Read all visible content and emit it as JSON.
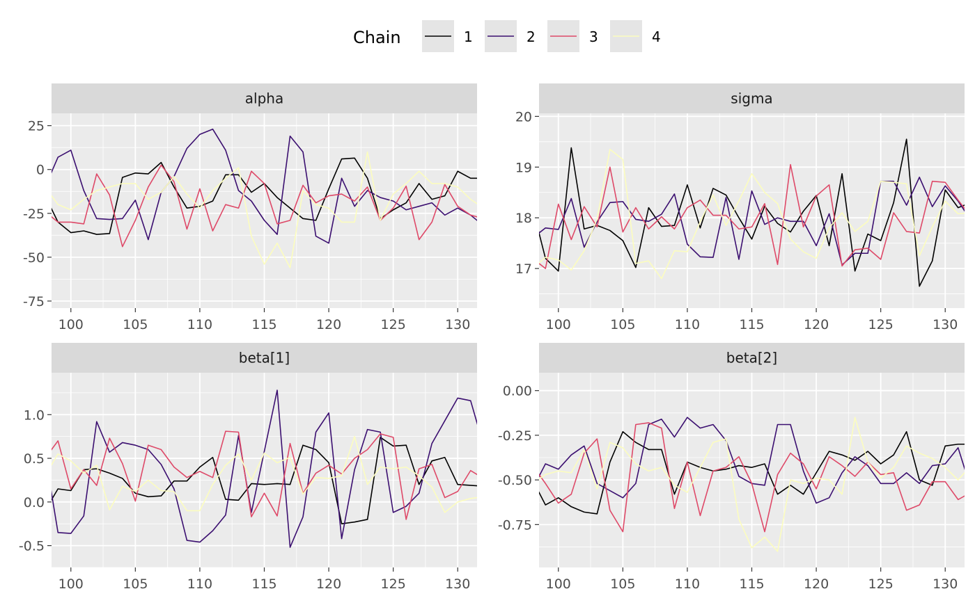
{
  "legend": {
    "title": "Chain",
    "items": [
      {
        "label": "1",
        "color": "#000000"
      },
      {
        "label": "2",
        "color": "#3B0F70"
      },
      {
        "label": "3",
        "color": "#DE4968"
      },
      {
        "label": "4",
        "color": "#FCFDBF"
      }
    ]
  },
  "chart_data": [
    {
      "type": "line",
      "title": "alpha",
      "x": [
        98,
        99,
        100,
        101,
        102,
        103,
        104,
        105,
        106,
        107,
        108,
        109,
        110,
        111,
        112,
        113,
        114,
        115,
        116,
        117,
        118,
        119,
        120,
        121,
        122,
        123,
        124,
        125,
        126,
        127,
        128,
        129,
        130,
        131,
        132
      ],
      "xlim": [
        98.5,
        131.5
      ],
      "xticks": [
        100,
        105,
        110,
        115,
        120,
        125,
        130
      ],
      "ylim": [
        -79,
        32
      ],
      "yticks": [
        25,
        0,
        -25,
        -50,
        -75
      ],
      "ytick_labels": [
        "25",
        "0",
        "-25",
        "-50",
        "-75"
      ],
      "series": [
        {
          "chain": "1",
          "values": [
            -15,
            -30,
            -36,
            -35,
            -37,
            -36.5,
            -4.5,
            -2,
            -2.5,
            4,
            -10,
            -22,
            -21,
            -18,
            -3,
            -3,
            -13,
            -8,
            -16,
            -22,
            -28,
            -29,
            -11,
            6,
            6.5,
            -5,
            -28,
            -23,
            -19,
            -8,
            -17,
            -15,
            -1,
            -5,
            -5
          ]
        },
        {
          "chain": "2",
          "values": [
            -10,
            7,
            11,
            -12,
            -28,
            -28.5,
            -28,
            -17.5,
            -40,
            -13,
            -4,
            12,
            20,
            23,
            11,
            -12,
            -18,
            -29,
            -37,
            19,
            10,
            -38,
            -42,
            -5,
            -21,
            -12,
            -16,
            -18,
            -23,
            -21,
            -19,
            -26,
            -22,
            -26,
            -32
          ]
        },
        {
          "chain": "3",
          "values": [
            -24,
            -30,
            -30,
            -31,
            -2.5,
            -14.5,
            -44,
            -29,
            -10,
            2.5,
            -7,
            -34,
            -11,
            -35,
            -20,
            -22,
            -1,
            -8,
            -31,
            -29,
            -9,
            -19,
            -15,
            -14,
            -18,
            -10,
            -29,
            -22,
            -9.5,
            -40,
            -30,
            -8.5,
            -21,
            -26,
            -28
          ]
        },
        {
          "chain": "4",
          "values": [
            -10,
            -20,
            -23,
            -17,
            -12,
            -10,
            -8,
            -8,
            -17,
            -13,
            -4,
            -14,
            -22,
            -12,
            -5,
            1,
            -38,
            -54,
            -42,
            -56,
            -12,
            -20,
            -22,
            -30,
            -30,
            10,
            -29,
            -14,
            -8,
            -1,
            -8,
            -8,
            -10,
            -17,
            -22
          ]
        }
      ]
    },
    {
      "type": "line",
      "title": "sigma",
      "x": [
        98,
        99,
        100,
        101,
        102,
        103,
        104,
        105,
        106,
        107,
        108,
        109,
        110,
        111,
        112,
        113,
        114,
        115,
        116,
        117,
        118,
        119,
        120,
        121,
        122,
        123,
        124,
        125,
        126,
        127,
        128,
        129,
        130,
        131,
        132
      ],
      "xlim": [
        98.5,
        131.5
      ],
      "xticks": [
        100,
        105,
        110,
        115,
        120,
        125,
        130
      ],
      "ylim": [
        16.22,
        20.06
      ],
      "yticks": [
        20,
        19,
        18,
        17
      ],
      "ytick_labels": [
        "20",
        "19",
        "18",
        "17"
      ],
      "series": [
        {
          "chain": "1",
          "values": [
            18.2,
            17.2,
            16.95,
            19.38,
            17.78,
            17.85,
            17.75,
            17.55,
            17.02,
            18.2,
            17.83,
            17.85,
            18.65,
            17.8,
            18.58,
            18.45,
            18.0,
            17.58,
            18.23,
            17.89,
            17.72,
            18.13,
            18.44,
            17.45,
            18.87,
            16.95,
            17.68,
            17.55,
            18.3,
            19.55,
            16.65,
            17.15,
            18.55,
            18.2,
            18.3
          ]
        },
        {
          "chain": "2",
          "values": [
            17.6,
            17.8,
            17.77,
            18.38,
            17.42,
            17.92,
            18.3,
            18.32,
            17.97,
            17.93,
            18.07,
            18.47,
            17.48,
            17.23,
            17.22,
            18.4,
            17.18,
            18.53,
            17.87,
            18.0,
            17.93,
            17.93,
            17.45,
            18.08,
            17.07,
            17.3,
            17.3,
            18.72,
            18.72,
            18.25,
            18.8,
            18.22,
            18.63,
            18.33,
            17.95
          ]
        },
        {
          "chain": "3",
          "values": [
            17.2,
            17.0,
            18.27,
            17.57,
            18.22,
            17.82,
            19.0,
            17.72,
            18.2,
            17.78,
            18.02,
            17.78,
            18.2,
            18.35,
            18.05,
            18.05,
            17.78,
            17.82,
            18.28,
            17.08,
            19.05,
            17.82,
            18.43,
            18.65,
            17.05,
            17.37,
            17.4,
            17.18,
            18.1,
            17.73,
            17.7,
            18.72,
            18.7,
            18.35,
            18.02
          ]
        },
        {
          "chain": "4",
          "values": [
            17.0,
            17.22,
            17.17,
            16.97,
            17.35,
            17.97,
            19.35,
            19.15,
            17.1,
            17.15,
            16.8,
            17.35,
            17.33,
            17.92,
            18.45,
            17.85,
            18.33,
            18.87,
            18.5,
            18.28,
            17.58,
            17.33,
            17.2,
            17.8,
            18.1,
            17.73,
            17.93,
            18.72,
            18.7,
            18.67,
            17.25,
            17.82,
            18.33,
            18.08,
            18.1
          ]
        }
      ]
    },
    {
      "type": "line",
      "title": "beta[1]",
      "x": [
        98,
        99,
        100,
        101,
        102,
        103,
        104,
        105,
        106,
        107,
        108,
        109,
        110,
        111,
        112,
        113,
        114,
        115,
        116,
        117,
        118,
        119,
        120,
        121,
        122,
        123,
        124,
        125,
        126,
        127,
        128,
        129,
        130,
        131,
        132
      ],
      "xlim": [
        98.5,
        131.5
      ],
      "xticks": [
        100,
        105,
        110,
        115,
        120,
        125,
        130
      ],
      "ylim": [
        -0.75,
        1.48
      ],
      "yticks": [
        1.0,
        0.5,
        0.0,
        -0.5
      ],
      "ytick_labels": [
        "1.0",
        "0.5",
        "0.0",
        "-0.5"
      ],
      "series": [
        {
          "chain": "1",
          "values": [
            -0.1,
            0.15,
            0.13,
            0.37,
            0.38,
            0.33,
            0.27,
            0.1,
            0.06,
            0.07,
            0.24,
            0.24,
            0.4,
            0.51,
            0.03,
            0.02,
            0.21,
            0.2,
            0.21,
            0.2,
            0.65,
            0.6,
            0.45,
            -0.25,
            -0.23,
            -0.2,
            0.74,
            0.64,
            0.65,
            0.2,
            0.47,
            0.51,
            0.2,
            0.19,
            0.18
          ]
        },
        {
          "chain": "2",
          "values": [
            0.55,
            -0.35,
            -0.36,
            -0.16,
            0.92,
            0.57,
            0.68,
            0.65,
            0.6,
            0.43,
            0.15,
            -0.44,
            -0.46,
            -0.33,
            -0.15,
            0.76,
            -0.12,
            0.58,
            1.28,
            -0.52,
            -0.17,
            0.8,
            1.02,
            -0.42,
            0.37,
            0.83,
            0.8,
            -0.12,
            -0.05,
            0.1,
            0.67,
            0.93,
            1.19,
            1.16,
            0.65
          ]
        },
        {
          "chain": "3",
          "values": [
            0.5,
            0.7,
            0.15,
            0.37,
            0.19,
            0.73,
            0.44,
            0.01,
            0.65,
            0.6,
            0.4,
            0.28,
            0.35,
            0.28,
            0.81,
            0.8,
            -0.17,
            0.1,
            -0.16,
            0.67,
            0.1,
            0.33,
            0.42,
            0.32,
            0.5,
            0.6,
            0.78,
            0.74,
            -0.2,
            0.38,
            0.43,
            0.05,
            0.12,
            0.36,
            0.27
          ]
        },
        {
          "chain": "4",
          "values": [
            0.3,
            0.55,
            0.47,
            0.33,
            0.42,
            -0.09,
            0.18,
            0.12,
            0.25,
            0.13,
            0.12,
            -0.1,
            -0.1,
            0.2,
            0.42,
            0.55,
            0.25,
            0.56,
            0.45,
            0.51,
            0.09,
            0.28,
            0.27,
            0.3,
            0.75,
            0.2,
            0.4,
            0.38,
            0.4,
            0.3,
            0.17,
            -0.12,
            0.0,
            0.04,
            0.06
          ]
        }
      ]
    },
    {
      "type": "line",
      "title": "beta[2]",
      "x": [
        98,
        99,
        100,
        101,
        102,
        103,
        104,
        105,
        106,
        107,
        108,
        109,
        110,
        111,
        112,
        113,
        114,
        115,
        116,
        117,
        118,
        119,
        120,
        121,
        122,
        123,
        124,
        125,
        126,
        127,
        128,
        129,
        130,
        131,
        132
      ],
      "xlim": [
        98.5,
        131.5
      ],
      "xticks": [
        100,
        105,
        110,
        115,
        120,
        125,
        130
      ],
      "ylim": [
        -0.99,
        0.1
      ],
      "yticks": [
        0.0,
        -0.25,
        -0.5,
        -0.75
      ],
      "ytick_labels": [
        "0.00",
        "-0.25",
        "-0.50",
        "-0.75"
      ],
      "series": [
        {
          "chain": "1",
          "values": [
            -0.5,
            -0.64,
            -0.6,
            -0.65,
            -0.68,
            -0.69,
            -0.4,
            -0.23,
            -0.29,
            -0.33,
            -0.33,
            -0.58,
            -0.4,
            -0.43,
            -0.45,
            -0.44,
            -0.42,
            -0.43,
            -0.41,
            -0.58,
            -0.53,
            -0.58,
            -0.46,
            -0.34,
            -0.36,
            -0.39,
            -0.34,
            -0.41,
            -0.36,
            -0.23,
            -0.5,
            -0.53,
            -0.31,
            -0.3,
            -0.3
          ]
        },
        {
          "chain": "2",
          "values": [
            -0.55,
            -0.41,
            -0.44,
            -0.36,
            -0.31,
            -0.52,
            -0.56,
            -0.6,
            -0.52,
            -0.19,
            -0.16,
            -0.26,
            -0.15,
            -0.21,
            -0.19,
            -0.28,
            -0.48,
            -0.52,
            -0.53,
            -0.19,
            -0.19,
            -0.45,
            -0.63,
            -0.6,
            -0.46,
            -0.37,
            -0.42,
            -0.52,
            -0.52,
            -0.46,
            -0.52,
            -0.42,
            -0.41,
            -0.32,
            -0.55
          ]
        },
        {
          "chain": "3",
          "values": [
            -0.42,
            -0.52,
            -0.63,
            -0.58,
            -0.35,
            -0.27,
            -0.67,
            -0.79,
            -0.19,
            -0.18,
            -0.21,
            -0.66,
            -0.4,
            -0.7,
            -0.45,
            -0.43,
            -0.37,
            -0.52,
            -0.79,
            -0.47,
            -0.35,
            -0.41,
            -0.55,
            -0.37,
            -0.42,
            -0.48,
            -0.4,
            -0.47,
            -0.46,
            -0.67,
            -0.64,
            -0.51,
            -0.51,
            -0.61,
            -0.57
          ]
        },
        {
          "chain": "4",
          "values": [
            -0.52,
            -0.47,
            -0.45,
            -0.46,
            -0.33,
            -0.55,
            -0.29,
            -0.32,
            -0.41,
            -0.45,
            -0.43,
            -0.53,
            -0.57,
            -0.43,
            -0.29,
            -0.27,
            -0.72,
            -0.88,
            -0.82,
            -0.9,
            -0.5,
            -0.52,
            -0.49,
            -0.5,
            -0.58,
            -0.15,
            -0.4,
            -0.49,
            -0.43,
            -0.31,
            -0.35,
            -0.38,
            -0.43,
            -0.5,
            -0.42
          ]
        }
      ]
    }
  ]
}
